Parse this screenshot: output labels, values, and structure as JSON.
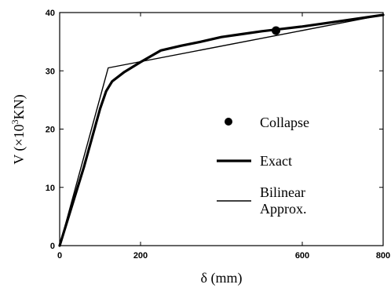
{
  "chart_data": {
    "type": "line",
    "xlabel": "δ (mm)",
    "ylabel_prefix": "V (×10",
    "ylabel_exp": "3",
    "ylabel_suffix": "KN)",
    "xlim": [
      0,
      800
    ],
    "ylim": [
      0,
      40
    ],
    "x_ticks": [
      {
        "value": 0,
        "label": "0"
      },
      {
        "value": 200,
        "label": "200"
      },
      {
        "value": 600,
        "label": "600"
      },
      {
        "value": 800,
        "label": "800"
      }
    ],
    "y_ticks": [
      {
        "value": 0,
        "label": "0"
      },
      {
        "value": 10,
        "label": "10"
      },
      {
        "value": 20,
        "label": "20"
      },
      {
        "value": 30,
        "label": "30"
      },
      {
        "value": 40,
        "label": "40"
      }
    ],
    "grid": false,
    "legend_position": "center-right",
    "series": [
      {
        "name": "Exact",
        "style": "thick",
        "x": [
          0,
          60,
          100,
          115,
          130,
          160,
          200,
          250,
          300,
          350,
          400,
          450,
          500,
          550,
          600,
          700,
          800
        ],
        "y": [
          0,
          13.5,
          23.5,
          26.5,
          28.2,
          29.8,
          31.5,
          33.5,
          34.3,
          35,
          35.8,
          36.3,
          36.8,
          37.2,
          37.6,
          38.6,
          39.6
        ]
      },
      {
        "name": "Bilinear Approx.",
        "style": "thin",
        "x": [
          0,
          120,
          800
        ],
        "y": [
          0,
          30.5,
          39.6
        ]
      }
    ],
    "markers": [
      {
        "name": "Collapse",
        "x": 535,
        "y": 36.9
      }
    ],
    "legend": [
      {
        "label": "Collapse",
        "kind": "dot"
      },
      {
        "label": "Exact",
        "kind": "thick"
      },
      {
        "label": "Bilinear",
        "kind": "thin",
        "extra": "Approx."
      }
    ]
  }
}
